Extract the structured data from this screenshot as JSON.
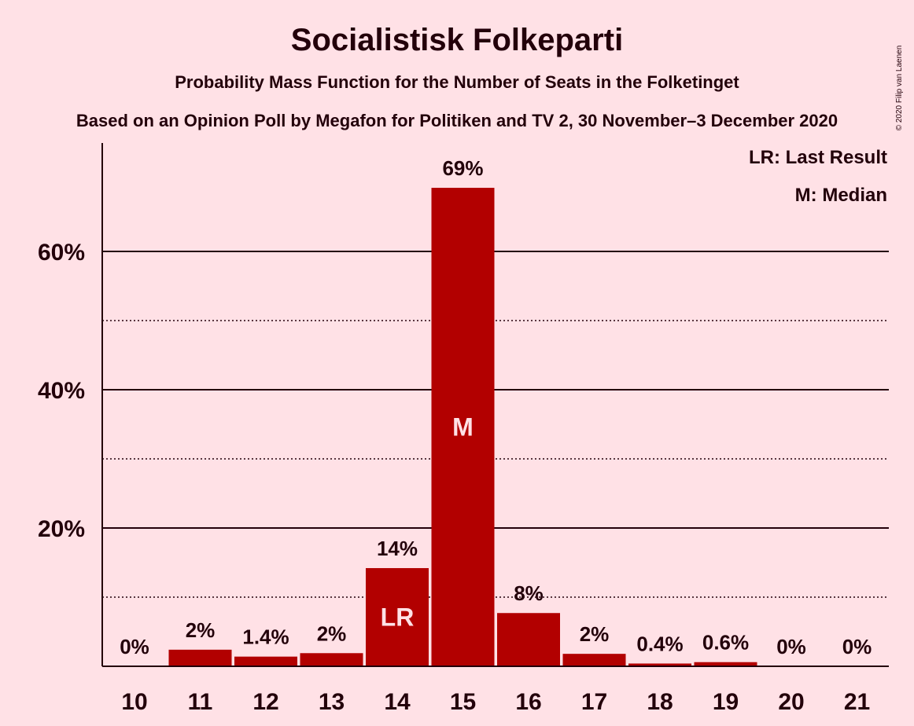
{
  "colors": {
    "background": "#FFE1E6",
    "bar": "#B20000",
    "text": "#23000A"
  },
  "chart_data": {
    "type": "bar",
    "title": "Socialistisk Folkeparti",
    "subtitle": "Probability Mass Function for the Number of Seats in the Folketinget",
    "source": "Based on an Opinion Poll by Megafon for Politiken and TV 2, 30 November–3 December 2020",
    "copyright": "© 2020 Filip van Laenen",
    "categories": [
      "10",
      "11",
      "12",
      "13",
      "14",
      "15",
      "16",
      "17",
      "18",
      "19",
      "20",
      "21"
    ],
    "values": [
      0,
      2.4,
      1.4,
      1.9,
      14.2,
      69.2,
      7.7,
      1.8,
      0.4,
      0.6,
      0,
      0
    ],
    "data_labels": [
      "0%",
      "2%",
      "1.4%",
      "2%",
      "14%",
      "69%",
      "8%",
      "2%",
      "0.4%",
      "0.6%",
      "0%",
      "0%"
    ],
    "markers": [
      {
        "category": "14",
        "label": "LR"
      },
      {
        "category": "15",
        "label": "M"
      }
    ],
    "legend": [
      "LR: Last Result",
      "M: Median"
    ],
    "legend_position": "top-right",
    "ylim": [
      0,
      75
    ],
    "yticks": [
      {
        "value": 20,
        "label": "20%"
      },
      {
        "value": 40,
        "label": "40%"
      },
      {
        "value": 60,
        "label": "60%"
      }
    ],
    "minor_gridlines": [
      10,
      30,
      50
    ],
    "grid": true
  }
}
